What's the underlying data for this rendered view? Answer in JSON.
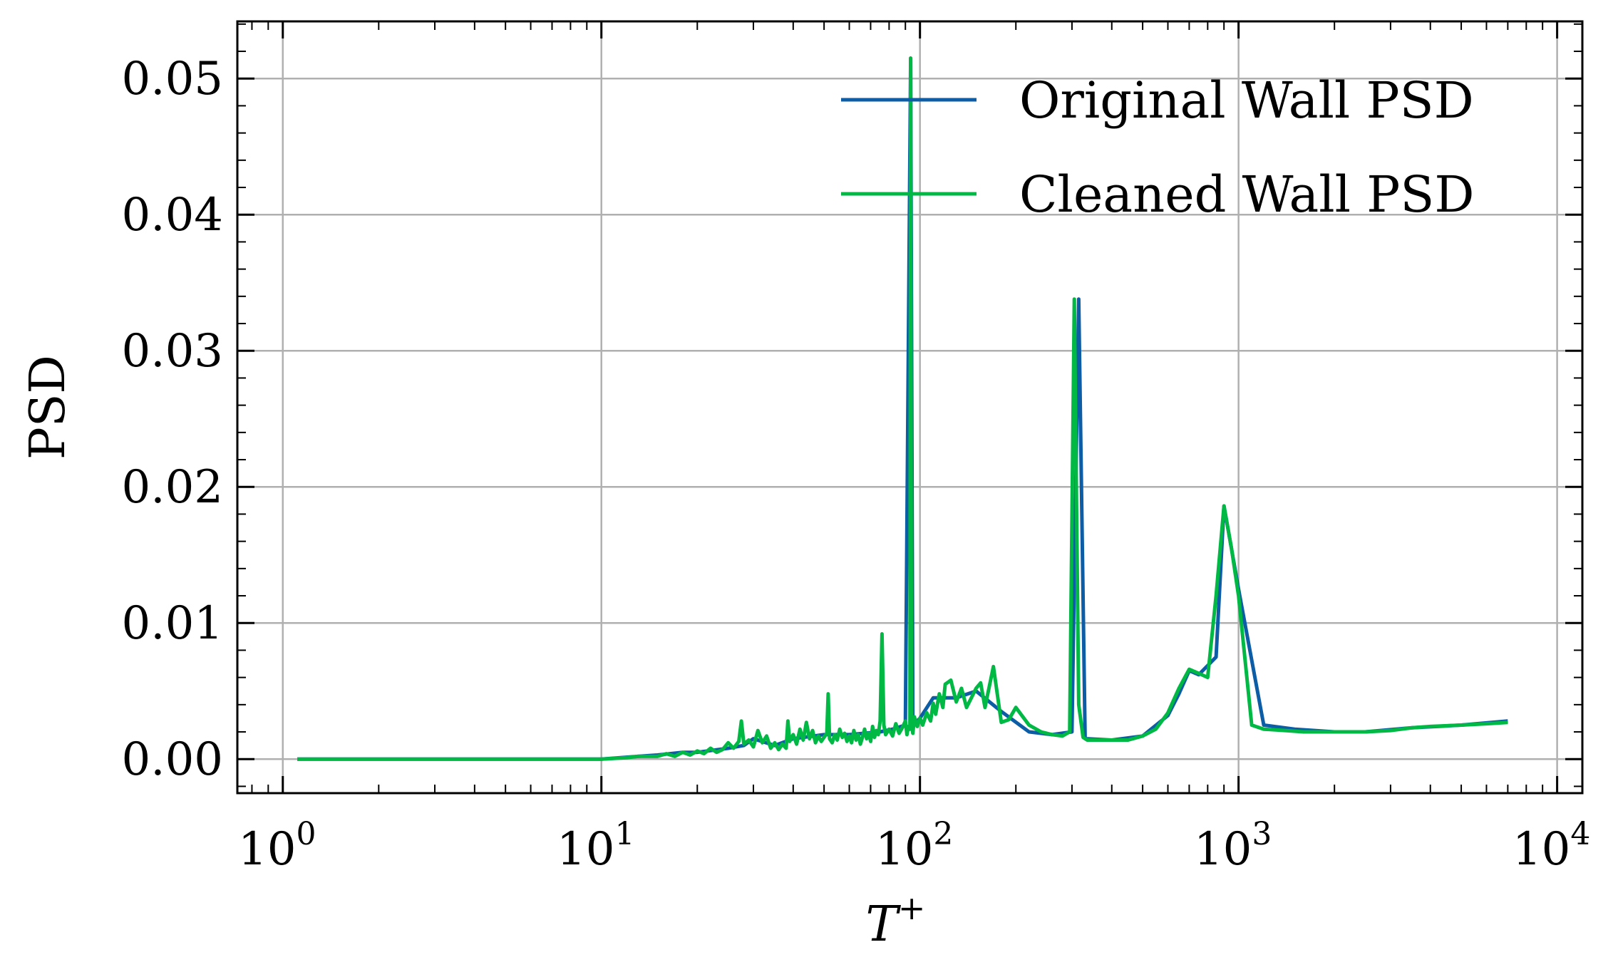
{
  "chart_data": {
    "type": "line",
    "xlabel": "T",
    "xlabel_superscript": "+",
    "ylabel": "PSD",
    "xscale": "log",
    "xlim": [
      0.72,
      12000
    ],
    "ylim": [
      -0.0025,
      0.0542
    ],
    "grid": true,
    "legend_position": "top-right",
    "colors": {
      "original": "#0C5DA5",
      "cleaned": "#00B945",
      "grid": "#b0b0b0"
    },
    "x_ticks": [
      {
        "value": 1,
        "base": "10",
        "exp": "0"
      },
      {
        "value": 10,
        "base": "10",
        "exp": "1"
      },
      {
        "value": 100,
        "base": "10",
        "exp": "2"
      },
      {
        "value": 1000,
        "base": "10",
        "exp": "3"
      },
      {
        "value": 10000,
        "base": "10",
        "exp": "4"
      }
    ],
    "y_ticks": [
      {
        "value": 0.0,
        "label": "0.00"
      },
      {
        "value": 0.01,
        "label": "0.01"
      },
      {
        "value": 0.02,
        "label": "0.02"
      },
      {
        "value": 0.03,
        "label": "0.03"
      },
      {
        "value": 0.04,
        "label": "0.04"
      },
      {
        "value": 0.05,
        "label": "0.05"
      }
    ],
    "series": [
      {
        "name": "Original Wall PSD",
        "color": "#0C5DA5",
        "x": [
          1.11,
          5,
          10,
          13,
          15,
          18,
          20,
          25,
          28,
          30,
          35,
          40,
          50,
          60,
          75,
          82,
          90,
          93.5,
          95,
          100,
          110,
          130,
          150,
          180,
          220,
          260,
          300,
          315,
          330,
          400,
          500,
          600,
          650,
          700,
          750,
          850,
          900,
          1000,
          1200,
          1500,
          2000,
          2500,
          3500,
          5000,
          7000
        ],
        "y": [
          0,
          0,
          0,
          0.0002,
          0.0003,
          0.0005,
          0.0005,
          0.0008,
          0.001,
          0.0015,
          0.001,
          0.0015,
          0.0018,
          0.0018,
          0.002,
          0.0022,
          0.0025,
          0.0515,
          0.0025,
          0.003,
          0.0045,
          0.0045,
          0.005,
          0.0035,
          0.002,
          0.0018,
          0.002,
          0.0338,
          0.0015,
          0.0014,
          0.0017,
          0.0032,
          0.0048,
          0.0065,
          0.0062,
          0.0075,
          0.0186,
          0.0125,
          0.0025,
          0.0022,
          0.002,
          0.002,
          0.0023,
          0.0025,
          0.0028
        ]
      },
      {
        "name": "Cleaned Wall PSD",
        "color": "#00B945",
        "x": [
          1.11,
          2,
          3,
          5,
          8,
          10,
          12,
          13,
          15,
          16,
          17,
          18,
          19,
          20,
          21,
          22,
          23,
          24,
          25,
          26,
          27,
          27.5,
          28,
          29,
          30,
          31,
          32,
          33,
          34,
          35,
          36,
          37,
          38,
          38.5,
          39,
          40,
          41,
          42,
          43,
          44,
          45,
          46,
          47,
          48,
          49,
          50,
          51,
          51.5,
          52,
          53,
          54,
          55,
          56,
          57,
          58,
          59,
          60,
          61,
          62,
          63,
          64,
          65,
          66,
          67,
          68,
          69,
          70,
          71,
          72,
          73,
          74,
          75,
          76,
          77,
          78,
          80,
          82,
          84,
          86,
          88,
          90,
          91,
          92,
          93,
          93.5,
          94,
          95,
          96,
          98,
          100,
          102,
          105,
          108,
          110,
          112,
          115,
          118,
          120,
          125,
          130,
          135,
          140,
          145,
          150,
          155,
          160,
          170,
          180,
          190,
          200,
          220,
          240,
          260,
          280,
          295,
          305,
          315,
          325,
          335,
          350,
          400,
          450,
          500,
          550,
          600,
          650,
          700,
          750,
          800,
          850,
          900,
          950,
          1000,
          1100,
          1200,
          1400,
          1600,
          2000,
          2500,
          3000,
          3500,
          4000,
          5000,
          6000,
          7000
        ],
        "y": [
          0,
          0,
          0,
          0,
          0,
          0,
          0.0001,
          0.0002,
          0.0002,
          0.0004,
          0.0002,
          0.0005,
          0.0003,
          0.0006,
          0.0004,
          0.0008,
          0.0005,
          0.0007,
          0.0012,
          0.0008,
          0.0013,
          0.0028,
          0.0011,
          0.0014,
          0.0009,
          0.0021,
          0.0012,
          0.0017,
          0.0008,
          0.0012,
          0.0007,
          0.0011,
          0.0008,
          0.0028,
          0.0013,
          0.0018,
          0.0011,
          0.0022,
          0.0014,
          0.0027,
          0.0015,
          0.0021,
          0.0012,
          0.0017,
          0.0013,
          0.0016,
          0.0019,
          0.0048,
          0.0015,
          0.0012,
          0.0018,
          0.0014,
          0.0022,
          0.0016,
          0.0019,
          0.0013,
          0.0017,
          0.0012,
          0.0021,
          0.0014,
          0.0018,
          0.0011,
          0.0016,
          0.0022,
          0.0015,
          0.0019,
          0.0013,
          0.0024,
          0.0016,
          0.0021,
          0.0018,
          0.0028,
          0.0092,
          0.0025,
          0.0018,
          0.0022,
          0.0017,
          0.0026,
          0.0019,
          0.0023,
          0.0028,
          0.0018,
          0.0024,
          0.0022,
          0.0515,
          0.0026,
          0.0019,
          0.0031,
          0.0024,
          0.003,
          0.0025,
          0.0034,
          0.0028,
          0.0041,
          0.0033,
          0.0048,
          0.0038,
          0.0055,
          0.0058,
          0.0042,
          0.0052,
          0.0038,
          0.0045,
          0.0052,
          0.0056,
          0.0038,
          0.0068,
          0.0027,
          0.0029,
          0.0038,
          0.0025,
          0.002,
          0.0018,
          0.0017,
          0.002,
          0.0338,
          0.004,
          0.0016,
          0.0014,
          0.0014,
          0.0014,
          0.0014,
          0.0017,
          0.0022,
          0.0034,
          0.0052,
          0.0066,
          0.0063,
          0.006,
          0.012,
          0.0186,
          0.0155,
          0.012,
          0.0025,
          0.0022,
          0.0021,
          0.002,
          0.002,
          0.002,
          0.0021,
          0.0023,
          0.0024,
          0.0025,
          0.0026,
          0.0027
        ]
      }
    ]
  }
}
